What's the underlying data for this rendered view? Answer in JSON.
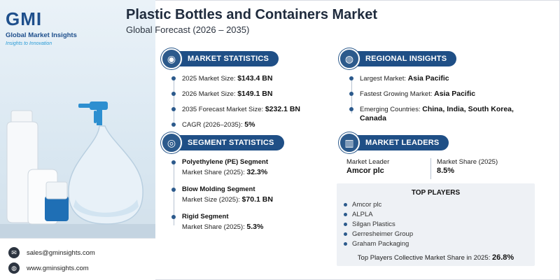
{
  "brand": {
    "logo_text": "GMI",
    "name": "Global Market Insights",
    "tagline": "Insights to Innovation"
  },
  "header": {
    "title": "Plastic Bottles and Containers Market",
    "subtitle": "Global Forecast (2026 – 2035)"
  },
  "market_statistics": {
    "heading": "MARKET STATISTICS",
    "icon": "globe-chart-icon",
    "items": [
      {
        "label": "2025 Market Size: ",
        "value": "$143.4 BN"
      },
      {
        "label": "2026 Market Size: ",
        "value": "$149.1 BN"
      },
      {
        "label": "2035 Forecast Market Size: ",
        "value": "$232.1 BN"
      },
      {
        "label": "CAGR (2026–2035): ",
        "value": "5%"
      }
    ]
  },
  "regional_insights": {
    "heading": "REGIONAL INSIGHTS",
    "icon": "globe-icon",
    "items": [
      {
        "label": "Largest Market: ",
        "value": "Asia Pacific"
      },
      {
        "label": "Fastest Growing Market: ",
        "value": "Asia Pacific"
      },
      {
        "label": "Emerging Countries: ",
        "value": "China, India, South Korea,",
        "value2": "Canada"
      }
    ]
  },
  "segment_statistics": {
    "heading": "SEGMENT STATISTICS",
    "icon": "target-icon",
    "items": [
      {
        "name": "Polyethylene (PE) Segment",
        "metric": "Market Share (2025): ",
        "value": "32.3%"
      },
      {
        "name": "Blow Molding Segment",
        "metric": "Market Size (2025): ",
        "value": "$70.1 BN"
      },
      {
        "name": "Rigid Segment",
        "metric": "Market Share (2025): ",
        "value": "5.3%"
      }
    ]
  },
  "market_leaders": {
    "heading": "MARKET LEADERS",
    "icon": "bar-chart-icon",
    "leader_label": "Market Leader",
    "leader_value": "Amcor plc",
    "share_label": "Market Share (2025)",
    "share_value": "8.5%"
  },
  "top_players": {
    "heading": "TOP PLAYERS",
    "players": [
      "Amcor plc",
      "ALPLA",
      "Silgan Plastics",
      "Gerresheimer Group",
      "Graham Packaging"
    ],
    "total_label": "Top Players Collective Market Share in 2025: ",
    "total_value": "26.8%"
  },
  "contact": {
    "email": "sales@gminsights.com",
    "website": "www.gminsights.com",
    "email_icon": "envelope-icon",
    "web_icon": "globe-icon"
  },
  "colors": {
    "accent": "#1f4f86",
    "brand_light": "#2a9bd6"
  }
}
